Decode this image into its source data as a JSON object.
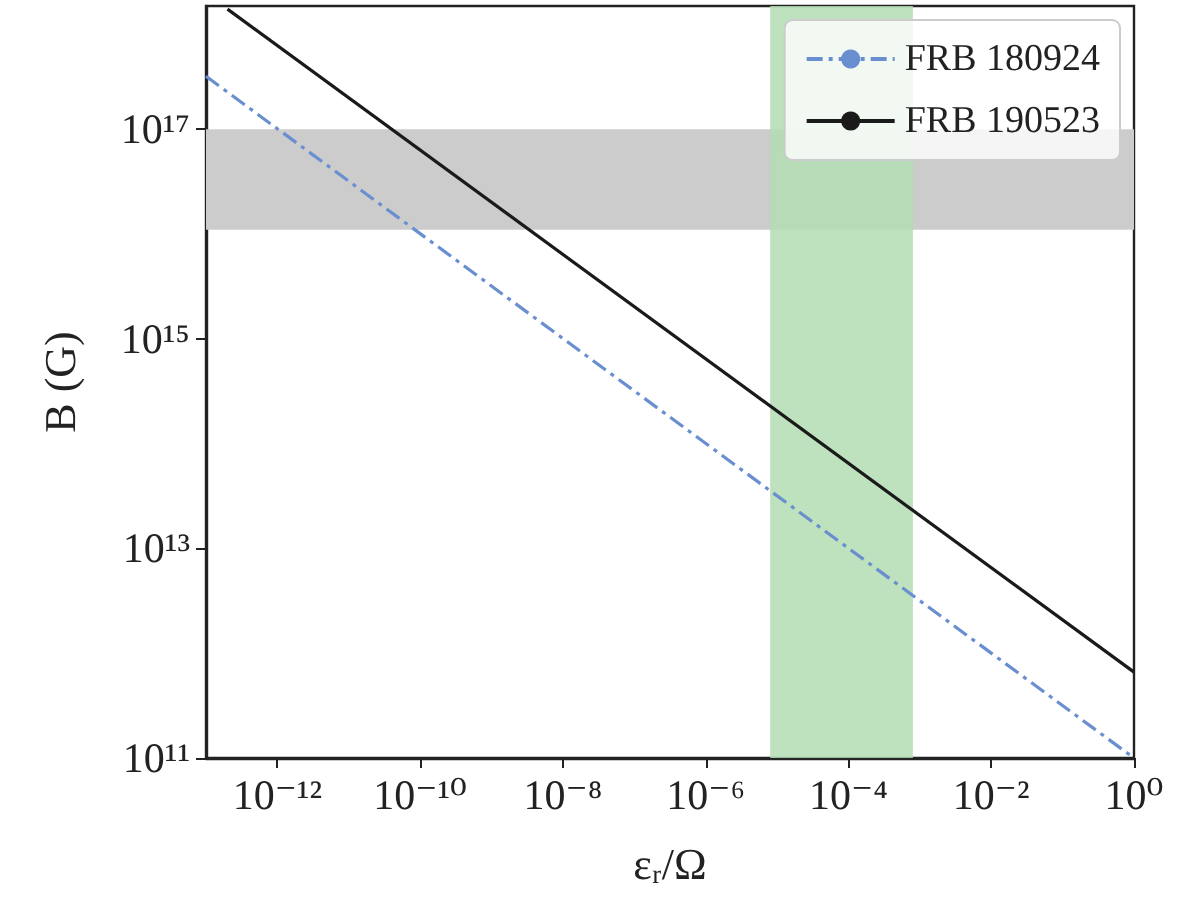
{
  "chart_data": {
    "type": "line",
    "xlabel": "εᵣ/Ω",
    "ylabel": "B (G)",
    "log": "xy",
    "xlim": [
      1e-13,
      1
    ],
    "ylim": [
      100000000000.0,
      1.5e+18
    ],
    "xticks": [
      {
        "value": 1e-12,
        "label": "10⁻¹²"
      },
      {
        "value": 1e-10,
        "label": "10⁻¹⁰"
      },
      {
        "value": 1e-08,
        "label": "10⁻⁸"
      },
      {
        "value": 1e-06,
        "label": "10⁻⁶"
      },
      {
        "value": 0.0001,
        "label": "10⁻⁴"
      },
      {
        "value": 0.01,
        "label": "10⁻²"
      },
      {
        "value": 1,
        "label": "10⁰"
      }
    ],
    "yticks": [
      {
        "value": 100000000000.0,
        "label": "10¹¹"
      },
      {
        "value": 10000000000000.0,
        "label": "10¹³"
      },
      {
        "value": 1000000000000000.0,
        "label": "10¹⁵"
      },
      {
        "value": 1e+17,
        "label": "10¹⁷"
      }
    ],
    "series": [
      {
        "name": "FRB 180924",
        "color": "#6a8fd0",
        "line_style": "dashdot",
        "x": [
          1e-13,
          1
        ],
        "values": [
          3.2e+17,
          100000000000.0
        ]
      },
      {
        "name": "FRB 190523",
        "color": "#1a1a1a",
        "line_style": "solid",
        "x": [
          2e-13,
          1
        ],
        "values": [
          1.4e+18,
          660000000000.0
        ]
      }
    ],
    "bands": [
      {
        "axis": "y",
        "from": 1.1e+16,
        "to": 1e+17,
        "color": "#cccccc"
      },
      {
        "axis": "x",
        "from": 8e-06,
        "to": 0.0008,
        "color": "#b3dcb3"
      }
    ],
    "grid": false,
    "legend": "top right",
    "marker": "none"
  }
}
